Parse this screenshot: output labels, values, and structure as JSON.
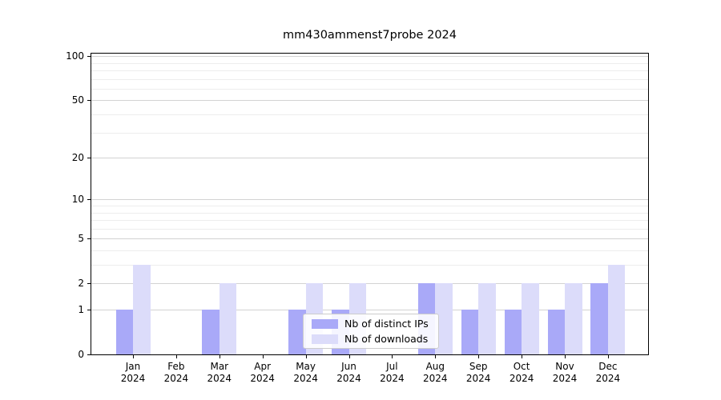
{
  "title": "mm430ammenst7probe 2024",
  "chart_data": {
    "type": "bar",
    "title": "mm430ammenst7probe 2024",
    "categories": [
      "Jan",
      "Feb",
      "Mar",
      "Apr",
      "May",
      "Jun",
      "Jul",
      "Aug",
      "Sep",
      "Oct",
      "Nov",
      "Dec"
    ],
    "year": "2024",
    "series": [
      {
        "name": "Nb of distinct IPs",
        "color": "#a9a9f8",
        "values": [
          1,
          0,
          1,
          0,
          1,
          1,
          0,
          2,
          1,
          1,
          1,
          2
        ]
      },
      {
        "name": "Nb of downloads",
        "color": "#dcdcfa",
        "values": [
          3,
          0,
          2,
          0,
          2,
          2,
          0,
          2,
          2,
          2,
          2,
          3
        ]
      }
    ],
    "xlabel": "",
    "ylabel": "",
    "yscale": "log1p",
    "ylim": [
      0,
      106
    ],
    "y_tick_labels": [
      "100",
      "50",
      "20",
      "10",
      "5",
      "2",
      "1",
      "0"
    ],
    "y_major_ticks": [
      100,
      50,
      20,
      10,
      5,
      2,
      1,
      0
    ],
    "y_minor_ticks": [
      3,
      4,
      6,
      7,
      8,
      9,
      30,
      40,
      60,
      70,
      80,
      90
    ],
    "grid": "both",
    "legend_position": "lower center-right inside plot"
  },
  "colors": {
    "major_grid": "#d2d2d2",
    "minor_grid": "#ededed",
    "spine": "#000000",
    "background": "#ffffff"
  }
}
